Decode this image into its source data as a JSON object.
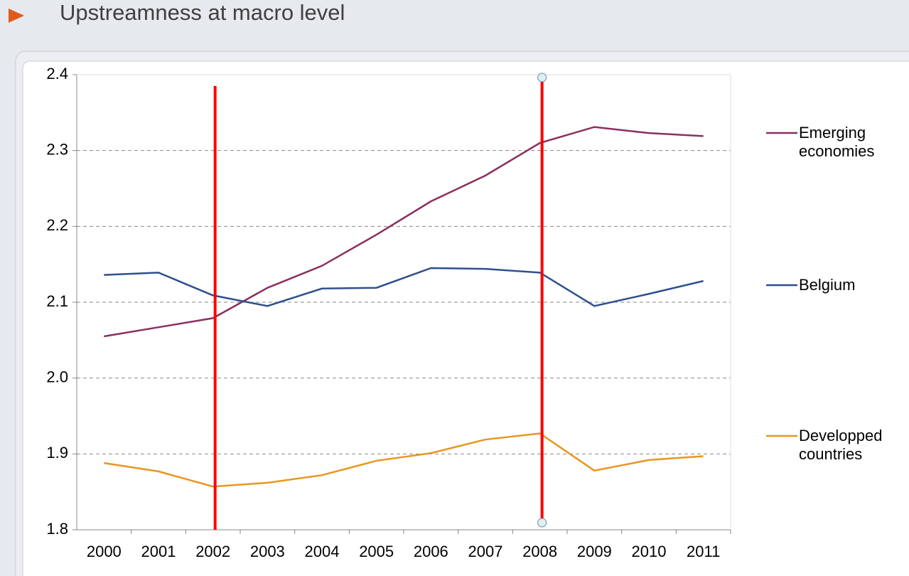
{
  "chart_data": {
    "type": "line",
    "title": "Upstreamness at macro level",
    "categories": [
      "2000",
      "2001",
      "2002",
      "2003",
      "2004",
      "2005",
      "2006",
      "2007",
      "2008",
      "2009",
      "2010",
      "2011"
    ],
    "series": [
      {
        "name": "Emerging economies",
        "color": "#8b2f5f",
        "values": [
          2.055,
          2.067,
          2.079,
          2.119,
          2.148,
          2.189,
          2.233,
          2.267,
          2.31,
          2.331,
          2.323,
          2.319
        ]
      },
      {
        "name": "Belgium",
        "color": "#2f4f8f",
        "values": [
          2.136,
          2.139,
          2.109,
          2.095,
          2.118,
          2.119,
          2.145,
          2.144,
          2.139,
          2.095,
          2.111,
          2.128
        ]
      },
      {
        "name": "Developped countries",
        "color": "#e8961e",
        "values": [
          1.888,
          1.877,
          1.857,
          1.862,
          1.872,
          1.891,
          1.901,
          1.919,
          1.927,
          1.878,
          1.892,
          1.897
        ]
      }
    ],
    "ylim": [
      1.8,
      2.4
    ],
    "yticks": [
      2.4,
      2.3,
      2.2,
      2.1,
      {
        "value": 2,
        "label": "2.0"
      },
      1.9,
      1.8
    ],
    "grid": true,
    "legend": "right",
    "vertical_lines": [
      {
        "at": "2002",
        "color": "#ff0000"
      },
      {
        "at": "2008",
        "color": "#ff0000"
      }
    ]
  }
}
